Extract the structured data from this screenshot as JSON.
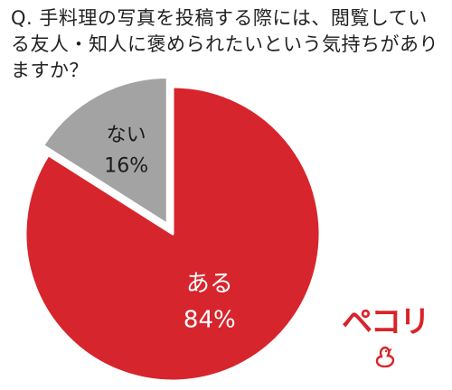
{
  "chart_data": {
    "type": "pie",
    "title": "Q. 手料理の写真を投稿する際には、閲覧している友人・知人に褒められたいという気持ちがありますか？",
    "categories": [
      "ある",
      "ない"
    ],
    "values": [
      84,
      16
    ],
    "value_labels": [
      "84%",
      "16%"
    ],
    "legend": "none",
    "start_angle_deg": 0,
    "direction": "clockwise",
    "exploded_category": "ない",
    "colors": {
      "ある": "#d7252d",
      "ない": "#a3a3a3",
      "outline": "#ffffff",
      "label_text": "#ffffff",
      "small_label_text": "#1a1a1a"
    }
  },
  "brand": {
    "name": "ペコリ",
    "color": "#d9232a",
    "icon": "bird-icon"
  }
}
